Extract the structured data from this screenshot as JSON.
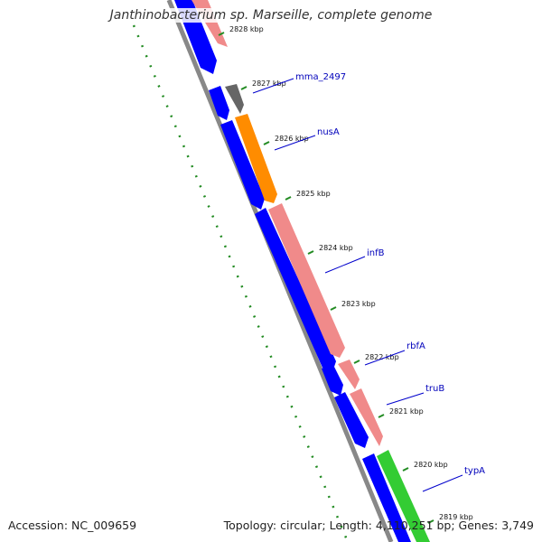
{
  "title": "Janthinobacterium sp. Marseille, complete genome",
  "footer": {
    "accession": "Accession: NC_009659",
    "summary": "Topology: circular; Length: 4,110,251 bp; Genes: 3,749"
  },
  "colors": {
    "forward_cds": "#f08a8a",
    "reverse_cds": "#0000ff",
    "rna_gene": "#666666",
    "highlight_gene": "#ff8c00",
    "special_gene": "#33cc33",
    "backbone": "#888888",
    "gc_dots": "#228b22",
    "label": "#0000bb"
  },
  "ticks": [
    {
      "label": "2828 kbp"
    },
    {
      "label": "2827 kbp"
    },
    {
      "label": "2826 kbp"
    },
    {
      "label": "2825 kbp"
    },
    {
      "label": "2824 kbp"
    },
    {
      "label": "2823 kbp"
    },
    {
      "label": "2822 kbp"
    },
    {
      "label": "2821 kbp"
    },
    {
      "label": "2820 kbp"
    },
    {
      "label": "2819 kbp"
    }
  ],
  "gene_labels": [
    "mma_2497",
    "nusA",
    "infB",
    "rbfA",
    "truB",
    "typA"
  ]
}
